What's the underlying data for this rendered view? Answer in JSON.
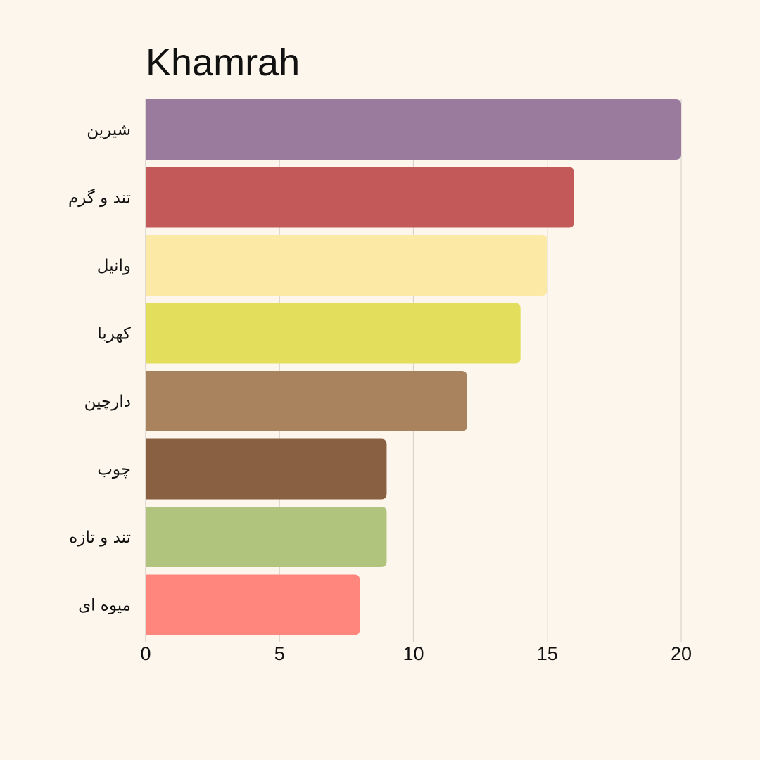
{
  "chart_data": {
    "type": "bar",
    "orientation": "horizontal",
    "title": "Khamrah",
    "categories": [
      "شیرین",
      "تند و گرم",
      "وانیل",
      "کهربا",
      "دارچین",
      "چوب",
      "تند و تازه",
      "میوه ای"
    ],
    "values": [
      20,
      16,
      15,
      14,
      12,
      9,
      9,
      8
    ],
    "colors": [
      "#9a7b9e",
      "#c35a59",
      "#fde9a6",
      "#e3df5d",
      "#a8835d",
      "#8a6043",
      "#b1c47e",
      "#ff867d"
    ],
    "xlim": [
      0,
      20
    ],
    "xticks": [
      0,
      5,
      10,
      15,
      20
    ],
    "xlabel": "",
    "ylabel": "",
    "grid": "vertical",
    "legend": "none"
  }
}
